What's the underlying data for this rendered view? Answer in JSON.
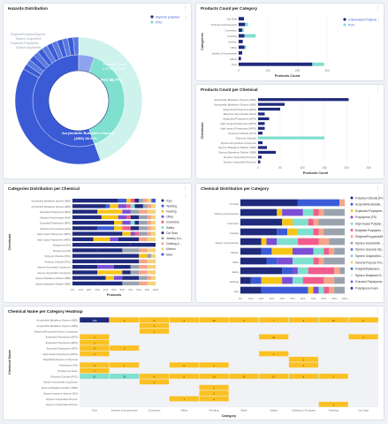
{
  "colors": {
    "navy": "#1f2a7c",
    "blue": "#3b5bd6",
    "teal": "#7fe0cf",
    "lightteal": "#cdf3ec",
    "yellow": "#f7c518",
    "pink": "#f25c8c",
    "salmon": "#f4a58a",
    "purple": "#7a4fd6",
    "grey": "#9aa3ad",
    "heatYellow": "#fbc123",
    "heatTeal": "#7fe0cf",
    "heatNavy": "#1f2a7c",
    "heatEmpty": "#f0f2f5"
  },
  "icons": {
    "menu": "kebab-menu-icon"
  },
  "hazards": {
    "title": "Hazards Distribution",
    "legend": [
      "Styrene polymer",
      "PVC"
    ],
    "inner_labels": [
      "PVC 88.77%"
    ],
    "outer_labels": [
      "Polyvinyl Chloride (PVC) 44.53%",
      "Styrene polymer",
      "Acrylonitrile Butadiene Styrene (ABS) 38.31%"
    ]
  },
  "pc_category": {
    "title": "Products Count per Category",
    "xlabel": "Products Count",
    "ylabel": "Categories",
    "legend": [
      "Chlorinated Polymer",
      "PVC"
    ],
    "chart_data": {
      "type": "bar",
      "orientation": "horizontal",
      "categories": [
        "Car Seat",
        "Clothing & Accessories",
        "Cosmetics",
        "Feeding",
        "Kitchen",
        "Office",
        "Jewelry & Accessories",
        "Safety",
        "Toys"
      ],
      "series": [
        {
          "name": "Chlorinated Polymer",
          "values": [
            18,
            22,
            12,
            20,
            14,
            20,
            12,
            8,
            250
          ]
        },
        {
          "name": "PVC",
          "values": [
            0,
            10,
            6,
            38,
            0,
            6,
            0,
            0,
            40
          ]
        }
      ],
      "ticks": [
        "0",
        "100",
        "200",
        "300"
      ],
      "xlim": [
        0,
        330
      ]
    }
  },
  "pc_chemical": {
    "title": "Products Count per Chemical",
    "xlabel": "Products Count",
    "ylabel": "Chemicals",
    "chart_data": {
      "type": "bar",
      "orientation": "horizontal",
      "categories": [
        "Acrylonitrile Butadiene Styrene (ABS)",
        "Acrylonitrile Butadiene Styrene (ABS)",
        "Expanded Polystyrene (EPS)",
        "Ethylene-Vinyl Acetate (EVA)",
        "Expanded Polystyrene (EPS)",
        "High Impact Polystyrene (HIPS)",
        "High Impact Polystyrene (HIPS)",
        "Polyvinyl Chloride (PVC)",
        "Polyvinyl Chloride",
        "Styrene Acrylonitrile Copolymer",
        "Styrene Butadiene Rubber (SBR)",
        "Styrene Butadiene Rubber (SBR)",
        "Styrene Unspecified Polymer",
        "Styrene Unspecified Polymer"
      ],
      "series": [
        {
          "name": "Navy",
          "values": [
            205,
            60,
            50,
            15,
            25,
            15,
            15,
            10,
            0,
            10,
            20,
            40,
            8,
            5
          ]
        },
        {
          "name": "Teal",
          "values": [
            0,
            0,
            0,
            0,
            0,
            0,
            0,
            0,
            150,
            0,
            0,
            0,
            0,
            0
          ]
        }
      ],
      "ticks": [
        "0",
        "50",
        "100",
        "150",
        "200",
        "250"
      ],
      "xlim": [
        0,
        260
      ]
    }
  },
  "cat_dist": {
    "title": "Categories Distribution per Chemical",
    "xlabel": "Products",
    "ylabel": "Chemicals",
    "legend": [
      "Toys",
      "Teething",
      "Feeding",
      "Office",
      "Cosmetics",
      "Safety",
      "Car Seat",
      "Jewelry & A...",
      "Clothing & ...",
      "Kitchen",
      "More"
    ],
    "chart_data": {
      "type": "bar",
      "orientation": "horizontal-stacked-percent",
      "categories": [
        "Acrylonitrile Butadiene Styrene (ABS)",
        "Acrylonitrile Butadiene Styrene (ABS)",
        "Expanded Polystyrene (EPS)",
        "Ethylene-Vinyl Acetate (EVA)",
        "Expanded Polystyrene (EPS)",
        "Ethylene-Vinyl Acetate (EVA)",
        "High Impact Polystyrene (HIPS)",
        "High Impact Polystyrene (HIPS)",
        "Polystyrene (PS)",
        "Polystyrene (PS)",
        "Polyvinyl Chloride (PVC)",
        "Polyvinyl Chloride (PVC)",
        "Styrene Acrylonitrile Copolymer",
        "Styrene Acrylonitrile Copolymer",
        "Styrene Butadiene Rubber (SBR)",
        "Styrene Butadiene Rubber (SBR)"
      ],
      "series": [
        {
          "name": "Toys",
          "values": [
            55,
            40,
            30,
            35,
            50,
            30,
            60,
            25,
            70,
            30,
            80,
            30,
            30,
            30,
            40,
            30
          ]
        },
        {
          "name": "Teething",
          "values": [
            10,
            5,
            0,
            0,
            0,
            20,
            0,
            0,
            0,
            0,
            0,
            0,
            0,
            0,
            0,
            0
          ]
        },
        {
          "name": "Feeding",
          "values": [
            5,
            10,
            30,
            20,
            10,
            10,
            10,
            20,
            0,
            0,
            10,
            0,
            0,
            30,
            10,
            0
          ]
        },
        {
          "name": "Office",
          "values": [
            0,
            10,
            10,
            10,
            10,
            0,
            5,
            10,
            0,
            0,
            0,
            0,
            20,
            0,
            10,
            0
          ]
        },
        {
          "name": "Cosmetics",
          "values": [
            5,
            5,
            0,
            5,
            0,
            10,
            5,
            0,
            0,
            0,
            0,
            0,
            0,
            0,
            0,
            0
          ]
        },
        {
          "name": "Safety",
          "values": [
            0,
            5,
            0,
            0,
            5,
            0,
            0,
            0,
            0,
            0,
            0,
            0,
            0,
            0,
            0,
            0
          ]
        },
        {
          "name": "Car Seat",
          "values": [
            5,
            10,
            0,
            10,
            5,
            10,
            0,
            25,
            30,
            30,
            0,
            50,
            20,
            10,
            20,
            30
          ]
        },
        {
          "name": "Jewelry & A...",
          "values": [
            5,
            5,
            10,
            10,
            10,
            10,
            10,
            0,
            0,
            20,
            5,
            0,
            10,
            10,
            10,
            20
          ]
        },
        {
          "name": "Clothing & ...",
          "values": [
            5,
            5,
            10,
            5,
            5,
            5,
            5,
            10,
            0,
            10,
            0,
            10,
            10,
            10,
            5,
            10
          ]
        },
        {
          "name": "Kitchen",
          "values": [
            5,
            5,
            10,
            5,
            5,
            5,
            5,
            10,
            0,
            10,
            5,
            10,
            10,
            10,
            5,
            10
          ]
        },
        {
          "name": "More",
          "values": [
            5,
            0,
            0,
            0,
            0,
            0,
            0,
            0,
            0,
            0,
            0,
            0,
            0,
            0,
            0,
            0
          ]
        }
      ],
      "ticks": [
        "0%",
        "10%",
        "20%",
        "30%",
        "40%",
        "50%",
        "60%",
        "70%",
        "80%",
        "90%",
        "100%"
      ]
    }
  },
  "chem_dist": {
    "title": "Chemical Distribution per Category",
    "legend": [
      "Polyvinyl Chloride (PV...",
      "Acrylonitrile Butadie...",
      "Expanded Polystyren...",
      "Polystyrene (PS)",
      "High Impact Polystyr...",
      "Butylated Polystyren...",
      "Ethylene/Propylene/M...",
      "Styrene Acrylonitrile ...",
      "Styrene Isoprene Sty...",
      "Styrene Unspecified ...",
      "General Purpose Pol...",
      "Poly(Methylstyrene-...",
      "Styrene Butadiene R...",
      "Extruded Polystyrene...",
      "Polystyrene Foam"
    ],
    "chart_data": {
      "type": "bar",
      "orientation": "horizontal-stacked-percent",
      "categories": [
        "Car Seat",
        "Clothing & Accessories",
        "Cosmetics",
        "Feeding",
        "Jewelry & Accessories",
        "Kitchen",
        "Office",
        "Safety",
        "Teething",
        "Toys"
      ],
      "series": [
        {
          "name": "Polyvinyl Chloride (PV...",
          "values": [
            55,
            35,
            40,
            35,
            20,
            20,
            25,
            40,
            10,
            20
          ]
        },
        {
          "name": "Acrylonitrile Butadie...",
          "values": [
            40,
            0,
            0,
            10,
            0,
            10,
            10,
            10,
            10,
            45
          ]
        },
        {
          "name": "Expanded Polystyren...",
          "values": [
            0,
            5,
            10,
            10,
            5,
            20,
            0,
            0,
            20,
            5
          ]
        },
        {
          "name": "Polystyrene (PS)",
          "values": [
            0,
            20,
            0,
            0,
            10,
            20,
            15,
            5,
            10,
            5
          ]
        },
        {
          "name": "High Impact Polystyr...",
          "values": [
            0,
            10,
            15,
            15,
            20,
            10,
            20,
            10,
            10,
            5
          ]
        },
        {
          "name": "Butylated Polystyren...",
          "values": [
            0,
            5,
            5,
            5,
            20,
            5,
            5,
            25,
            20,
            5
          ]
        },
        {
          "name": "Ethylene/Propylene/M...",
          "values": [
            5,
            5,
            5,
            5,
            10,
            5,
            5,
            5,
            10,
            5
          ]
        },
        {
          "name": "Styrene Acrylonitrile ...",
          "values": [
            0,
            20,
            25,
            20,
            15,
            10,
            20,
            5,
            10,
            10
          ]
        }
      ],
      "ticks": [
        "0%",
        "10%",
        "20%",
        "30%",
        "40%",
        "50%",
        "60%",
        "70%",
        "80%",
        "90%",
        "100%"
      ]
    }
  },
  "heatmap": {
    "title": "Chemical Name per Category Heatmap",
    "xlabel": "Category",
    "ylabel": "Chemical Name",
    "chart_data": {
      "type": "heatmap",
      "x": [
        "Toys",
        "Jewelry & Accessories",
        "Cosmetics",
        "Office",
        "Feeding",
        "Mask",
        "Safety",
        "Clothing & Footwear",
        "Teething",
        "Car Seat"
      ],
      "y": [
        "Acrylonitrile Butadiene Styrene (ABS)",
        "Acrylonitrile Butadiene Styrene (ABS)",
        "Ethylene/Propylene/Styrene Copolymer",
        "Expanded Polystyrene (EPS)",
        "Expanded Polystyrene (EPS)",
        "Extruded Polystyrene (XPS)",
        "High Impact Polystyrene (HIPS)",
        "Poly(Methylstyrene-co-Styrene)",
        "Polystyrene (PS)",
        "Polystyrene Foam",
        "Polyvinyl Chloride (PVC)",
        "Styrene Acrylonitrile Copolymer",
        "Styrene Butadiene Rubber (SBR)",
        "Styrene Isoprene Styrene (SIS)",
        "Styrene Unspecified Polymer",
        "Styrene Unspecified Polymer"
      ],
      "cells": [
        [
          0,
          0,
          "105"
        ],
        [
          1,
          0,
          "2"
        ],
        [
          2,
          0,
          "6"
        ],
        [
          3,
          0,
          "3"
        ],
        [
          4,
          0,
          "10"
        ],
        [
          5,
          0,
          "3"
        ],
        [
          6,
          0,
          "7"
        ],
        [
          7,
          0,
          "4"
        ],
        [
          8,
          0,
          "11"
        ],
        [
          9,
          0,
          "2"
        ],
        [
          2,
          1,
          "1"
        ],
        [
          2,
          2,
          "2"
        ],
        [
          0,
          3,
          "1"
        ],
        [
          6,
          3,
          "11"
        ],
        [
          9,
          3,
          "1"
        ],
        [
          0,
          4,
          "1"
        ],
        [
          0,
          5,
          "5"
        ],
        [
          1,
          5,
          "2"
        ],
        [
          0,
          6,
          "1"
        ],
        [
          6,
          6,
          "1"
        ],
        [
          7,
          7,
          "2"
        ],
        [
          0,
          8,
          "9"
        ],
        [
          1,
          8,
          "1"
        ],
        [
          3,
          8,
          "6"
        ],
        [
          4,
          8,
          "1"
        ],
        [
          7,
          8,
          "1"
        ],
        [
          0,
          9,
          "1"
        ],
        [
          0,
          10,
          "51"
        ],
        [
          1,
          10,
          "36"
        ],
        [
          2,
          10,
          "6"
        ],
        [
          3,
          10,
          "8"
        ],
        [
          4,
          10,
          "14"
        ],
        [
          5,
          10,
          "16"
        ],
        [
          6,
          10,
          "10"
        ],
        [
          7,
          10,
          "8"
        ],
        [
          8,
          10,
          "3"
        ],
        [
          2,
          11,
          "1"
        ],
        [
          4,
          12,
          "2"
        ],
        [
          4,
          13,
          "1"
        ],
        [
          3,
          14,
          "1"
        ],
        [
          4,
          14,
          "2"
        ],
        [
          8,
          15,
          "1"
        ]
      ],
      "teal_cells": [
        [
          0,
          10
        ],
        [
          1,
          10
        ]
      ],
      "navy_cells": [
        [
          0,
          0
        ]
      ]
    }
  }
}
